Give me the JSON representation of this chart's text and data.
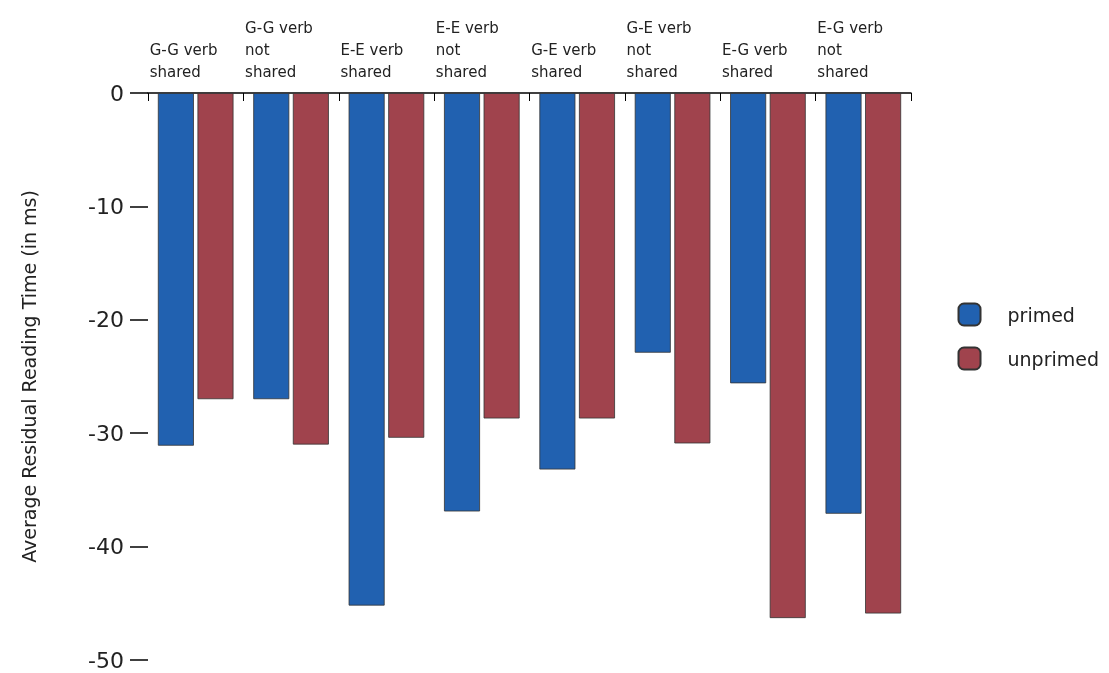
{
  "chart_data": {
    "type": "bar",
    "ylabel": "Average Residual Reading Time (in ms)",
    "categories": [
      "G-G verb shared",
      "G-G verb not shared",
      "E-E verb shared",
      "E-E verb not shared",
      "G-E verb shared",
      "G-E verb not shared",
      "E-G verb shared",
      "E-G verb not shared"
    ],
    "series": [
      {
        "name": "primed",
        "color": "#2161b0",
        "values": [
          -31.1,
          -27.0,
          -45.2,
          -36.9,
          -33.2,
          -22.9,
          -25.6,
          -37.1
        ]
      },
      {
        "name": "unprimed",
        "color": "#a0434d",
        "values": [
          -27.0,
          -31.0,
          -30.4,
          -28.7,
          -28.7,
          -30.9,
          -46.3,
          -45.9
        ]
      }
    ],
    "ylim": [
      -50,
      0
    ],
    "yticks": [
      -50,
      -40,
      -30,
      -20,
      -10,
      0
    ],
    "grid": false,
    "legend": "right"
  }
}
